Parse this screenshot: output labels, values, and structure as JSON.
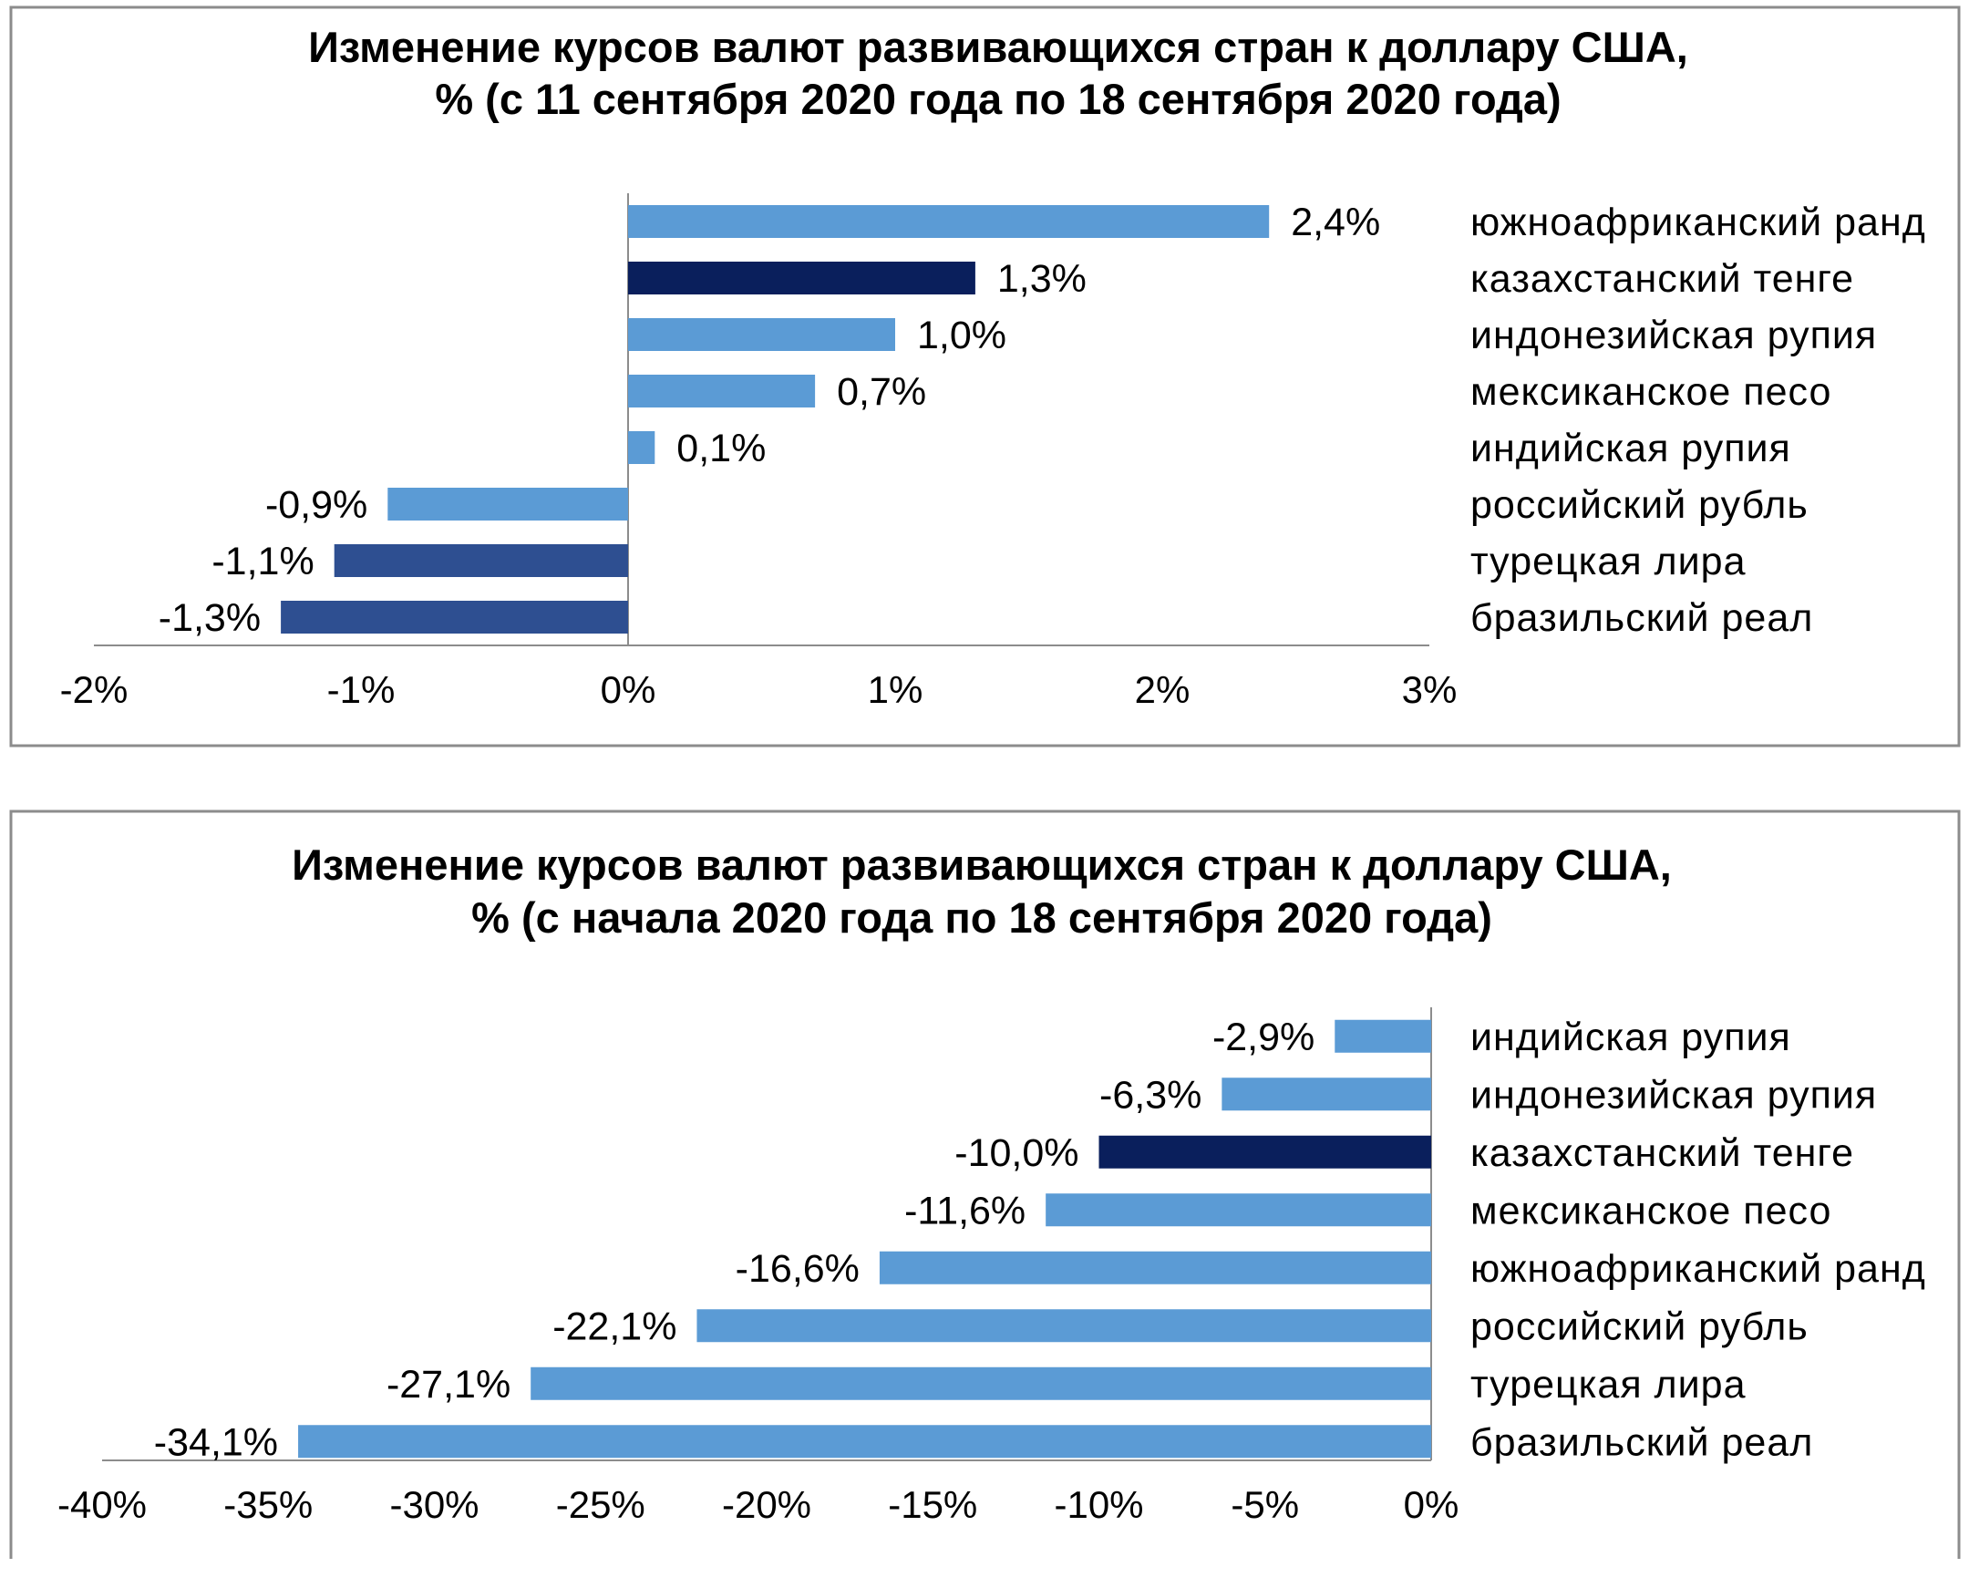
{
  "chart_data": [
    {
      "type": "bar",
      "orientation": "horizontal",
      "title_line1": "Изменение курсов валют развивающихся стран к доллару США,",
      "title_line2": "% (с 11 сентября 2020 года по 18 сентября 2020 года)",
      "categories": [
        "южноафриканский  ранд",
        "казахстанский  тенге",
        "индонезийская  рупия",
        "мексиканское песо",
        "индийская рупия",
        "российский рубль",
        "турецкая лира",
        "бразильский  реал"
      ],
      "values": [
        2.4,
        1.3,
        1.0,
        0.7,
        0.1,
        -0.9,
        -1.1,
        -1.3
      ],
      "value_labels": [
        "2,4%",
        "1,3%",
        "1,0%",
        "0,7%",
        "0,1%",
        "-0,9%",
        "-1,1%",
        "-1,3%"
      ],
      "colors": [
        "#5b9bd5",
        "#0a1f5c",
        "#5b9bd5",
        "#5b9bd5",
        "#5b9bd5",
        "#5b9bd5",
        "#2e4f91",
        "#2e4f91"
      ],
      "xlim": [
        -2,
        3
      ],
      "xticks": [
        -2,
        -1,
        0,
        1,
        2,
        3
      ],
      "xtick_labels": [
        "-2%",
        "-1%",
        "0%",
        "1%",
        "2%",
        "3%"
      ],
      "grid": false,
      "legend": "none"
    },
    {
      "type": "bar",
      "orientation": "horizontal",
      "title_line1": "Изменение курсов валют развивающихся стран к доллару США,",
      "title_line2": "% (с начала 2020 года по 18 сентября 2020 года)",
      "categories": [
        "индийская рупия",
        "индонезийская  рупия",
        "казахстанский  тенге",
        "мексиканское песо",
        "южноафриканский  ранд",
        "российский рубль",
        "турецкая лира",
        "бразильский  реал"
      ],
      "values": [
        -2.9,
        -6.3,
        -10.0,
        -11.6,
        -16.6,
        -22.1,
        -27.1,
        -34.1
      ],
      "value_labels": [
        "-2,9%",
        "-6,3%",
        "-10,0%",
        "-11,6%",
        "-16,6%",
        "-22,1%",
        "-27,1%",
        "-34,1%"
      ],
      "colors": [
        "#5b9bd5",
        "#5b9bd5",
        "#0a1f5c",
        "#5b9bd5",
        "#5b9bd5",
        "#5b9bd5",
        "#5b9bd5",
        "#5b9bd5"
      ],
      "xlim": [
        -40,
        0
      ],
      "xticks": [
        -40,
        -35,
        -30,
        -25,
        -20,
        -15,
        -10,
        -5,
        0
      ],
      "xtick_labels": [
        "-40%",
        "-35%",
        "-30%",
        "-25%",
        "-20%",
        "-15%",
        "-10%",
        "-5%",
        "0%"
      ],
      "grid": false,
      "legend": "none"
    }
  ]
}
